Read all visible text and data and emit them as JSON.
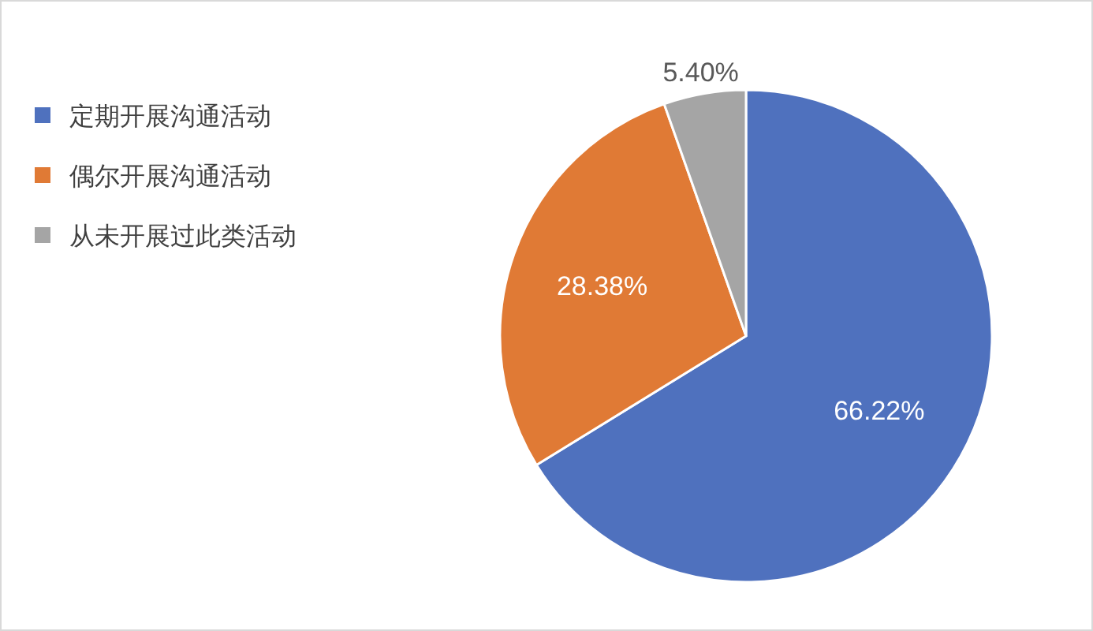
{
  "chart_data": {
    "type": "pie",
    "categories": [
      "定期开展沟通活动",
      "偶尔开展沟通活动",
      "从未开展过此类活动"
    ],
    "values": [
      66.22,
      28.38,
      5.4
    ],
    "colors": [
      "#4f71be",
      "#e07a35",
      "#a5a5a5"
    ],
    "value_labels": [
      "66.22%",
      "28.38%",
      "5.40%"
    ],
    "legend": "top left"
  }
}
